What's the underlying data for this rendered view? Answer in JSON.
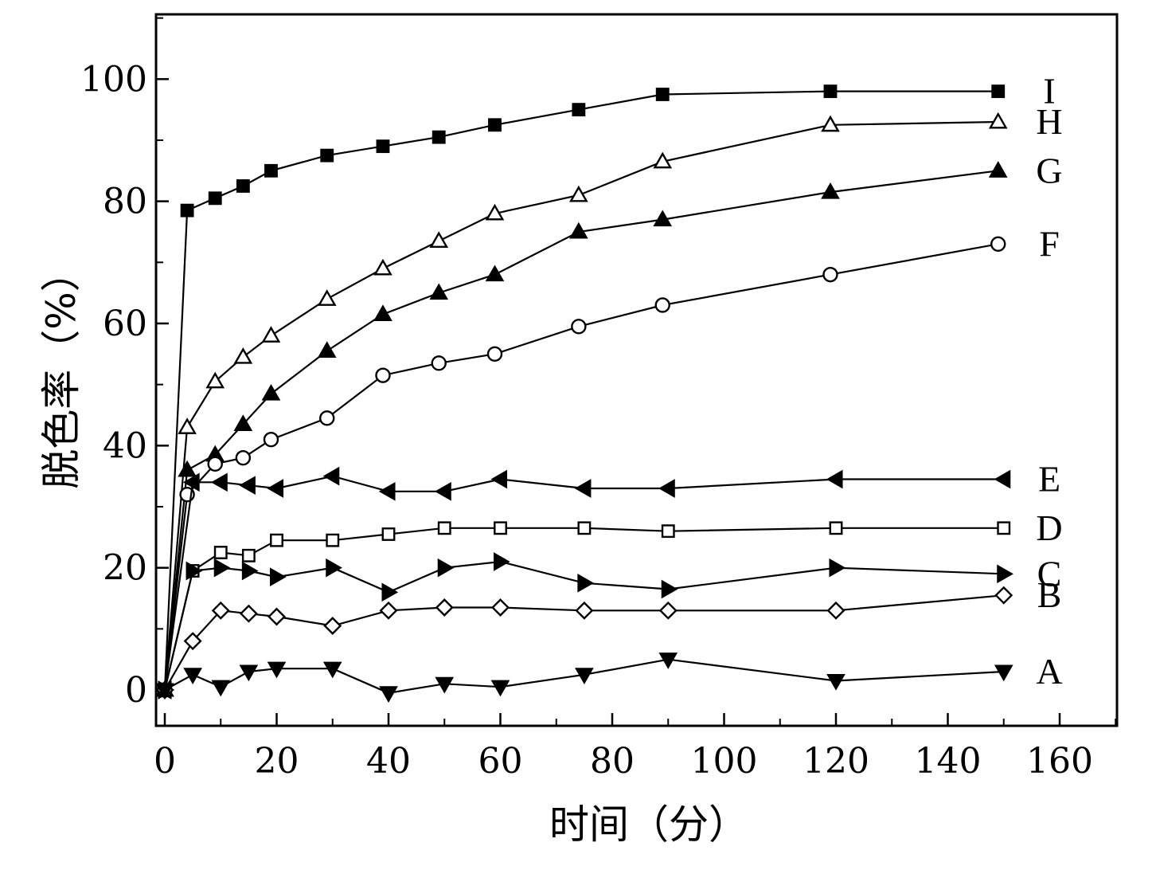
{
  "chart_data": {
    "type": "line",
    "xlabel": "时间（分）",
    "ylabel": "脱色率（%）",
    "xlim": [
      0,
      170
    ],
    "ylim": [
      -6,
      110
    ],
    "xticks": [
      0,
      20,
      40,
      60,
      80,
      100,
      120,
      140,
      160
    ],
    "yticks": [
      0,
      20,
      40,
      60,
      80,
      100
    ],
    "grid": false,
    "legend": "inline labels at right end of each series",
    "series": [
      {
        "name": "I",
        "marker": "filled-square",
        "x": [
          0,
          4,
          9,
          14,
          19,
          29,
          39,
          49,
          59,
          74,
          89,
          119,
          149
        ],
        "y": [
          0,
          78.5,
          80.5,
          82.5,
          85,
          87.5,
          89,
          90.5,
          92.5,
          95,
          97.5,
          98,
          98
        ]
      },
      {
        "name": "H",
        "marker": "open-triangle-up",
        "x": [
          0,
          4,
          9,
          14,
          19,
          29,
          39,
          49,
          59,
          74,
          89,
          119,
          149
        ],
        "y": [
          0,
          43,
          50.5,
          54.5,
          58,
          64,
          69,
          73.5,
          78,
          81,
          86.5,
          92.5,
          93
        ]
      },
      {
        "name": "G",
        "marker": "filled-triangle-up",
        "x": [
          0,
          4,
          9,
          14,
          19,
          29,
          39,
          49,
          59,
          74,
          89,
          119,
          149
        ],
        "y": [
          0,
          36,
          38.5,
          43.5,
          48.5,
          55.5,
          61.5,
          65,
          68,
          75,
          77,
          81.5,
          85
        ]
      },
      {
        "name": "F",
        "marker": "open-circle",
        "x": [
          0,
          4,
          9,
          14,
          19,
          29,
          39,
          49,
          59,
          74,
          89,
          119,
          149
        ],
        "y": [
          0,
          32,
          37,
          38,
          41,
          44.5,
          51.5,
          53.5,
          55,
          59.5,
          63,
          68,
          73
        ]
      },
      {
        "name": "E",
        "marker": "filled-triangle-left",
        "x": [
          0,
          5,
          10,
          15,
          20,
          30,
          40,
          50,
          60,
          75,
          90,
          120,
          150
        ],
        "y": [
          0,
          34,
          34,
          33.5,
          33,
          35,
          32.5,
          32.5,
          34.5,
          33,
          33,
          34.5,
          34.5
        ]
      },
      {
        "name": "D",
        "marker": "open-square",
        "x": [
          0,
          5,
          10,
          15,
          20,
          30,
          40,
          50,
          60,
          75,
          90,
          120,
          150
        ],
        "y": [
          0,
          19.5,
          22.5,
          22,
          24.5,
          24.5,
          25.5,
          26.5,
          26.5,
          26.5,
          26,
          26.5,
          26.5
        ]
      },
      {
        "name": "C",
        "marker": "filled-triangle-right",
        "x": [
          0,
          5,
          10,
          15,
          20,
          30,
          40,
          50,
          60,
          75,
          90,
          120,
          150
        ],
        "y": [
          0,
          19.5,
          20,
          19.5,
          18.5,
          20,
          16,
          20,
          21,
          17.5,
          16.5,
          20,
          19
        ]
      },
      {
        "name": "B",
        "marker": "open-diamond",
        "x": [
          0,
          5,
          10,
          15,
          20,
          30,
          40,
          50,
          60,
          75,
          90,
          120,
          150
        ],
        "y": [
          0,
          8,
          13,
          12.5,
          12,
          10.5,
          13,
          13.5,
          13.5,
          13,
          13,
          13,
          15.5
        ]
      },
      {
        "name": "A",
        "marker": "filled-triangle-down",
        "x": [
          0,
          5,
          10,
          15,
          20,
          30,
          40,
          50,
          60,
          75,
          90,
          120,
          150
        ],
        "y": [
          0,
          2.5,
          0.5,
          3,
          3.5,
          3.5,
          -0.5,
          1,
          0.5,
          2.5,
          5,
          1.5,
          3
        ]
      }
    ]
  }
}
